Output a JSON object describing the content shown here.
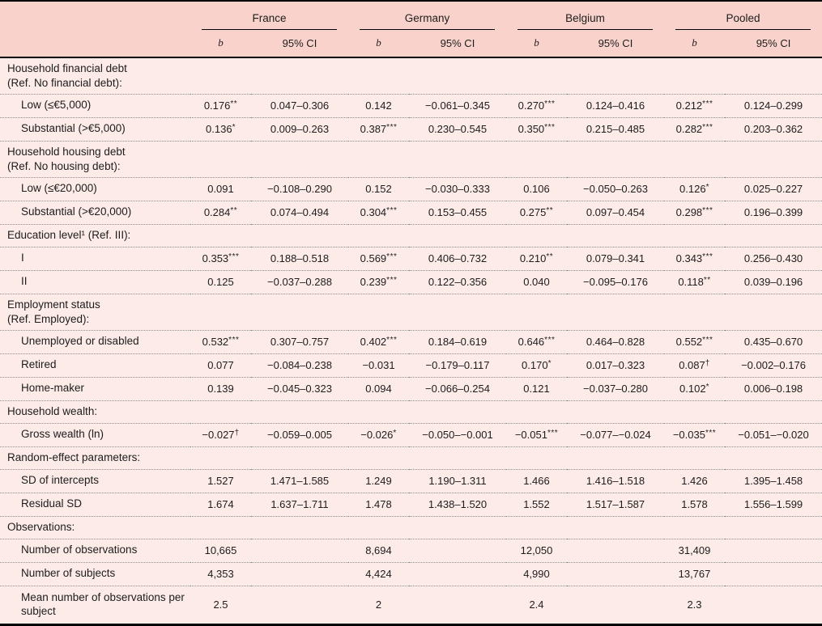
{
  "table": {
    "b_label": "b",
    "ci_label": "95% CI",
    "groups": [
      {
        "label": "France"
      },
      {
        "label": "Germany"
      },
      {
        "label": "Belgium"
      },
      {
        "label": "Pooled"
      }
    ],
    "rows": [
      {
        "type": "section",
        "label": "Household financial debt",
        "label2": "(Ref. No financial debt):"
      },
      {
        "type": "data",
        "label": "Low (≤€5,000)",
        "cells": [
          {
            "b": "0.176",
            "sig": "**",
            "ci": "0.047–0.306"
          },
          {
            "b": "0.142",
            "sig": "",
            "ci": "−0.061–0.345"
          },
          {
            "b": "0.270",
            "sig": "***",
            "ci": "0.124–0.416"
          },
          {
            "b": "0.212",
            "sig": "***",
            "ci": "0.124–0.299"
          }
        ]
      },
      {
        "type": "data",
        "label": "Substantial (>€5,000)",
        "cells": [
          {
            "b": "0.136",
            "sig": "*",
            "ci": "0.009–0.263"
          },
          {
            "b": "0.387",
            "sig": "***",
            "ci": "0.230–0.545"
          },
          {
            "b": "0.350",
            "sig": "***",
            "ci": "0.215–0.485"
          },
          {
            "b": "0.282",
            "sig": "***",
            "ci": "0.203–0.362"
          }
        ]
      },
      {
        "type": "section",
        "label": "Household housing debt",
        "label2": "(Ref. No housing debt):"
      },
      {
        "type": "data",
        "label": "Low (≤€20,000)",
        "cells": [
          {
            "b": "0.091",
            "sig": "",
            "ci": "−0.108–0.290"
          },
          {
            "b": "0.152",
            "sig": "",
            "ci": "−0.030–0.333"
          },
          {
            "b": "0.106",
            "sig": "",
            "ci": "−0.050–0.263"
          },
          {
            "b": "0.126",
            "sig": "*",
            "ci": "0.025–0.227"
          }
        ]
      },
      {
        "type": "data",
        "label": "Substantial (>€20,000)",
        "cells": [
          {
            "b": "0.284",
            "sig": "**",
            "ci": "0.074–0.494"
          },
          {
            "b": "0.304",
            "sig": "***",
            "ci": "0.153–0.455"
          },
          {
            "b": "0.275",
            "sig": "**",
            "ci": "0.097–0.454"
          },
          {
            "b": "0.298",
            "sig": "***",
            "ci": "0.196–0.399"
          }
        ]
      },
      {
        "type": "section",
        "label": "Education level¹ (Ref. III):",
        "label2": ""
      },
      {
        "type": "data",
        "label": "I",
        "cells": [
          {
            "b": "0.353",
            "sig": "***",
            "ci": "0.188–0.518"
          },
          {
            "b": "0.569",
            "sig": "***",
            "ci": "0.406–0.732"
          },
          {
            "b": "0.210",
            "sig": "**",
            "ci": "0.079–0.341"
          },
          {
            "b": "0.343",
            "sig": "***",
            "ci": "0.256–0.430"
          }
        ]
      },
      {
        "type": "data",
        "label": "II",
        "cells": [
          {
            "b": "0.125",
            "sig": "",
            "ci": "−0.037–0.288"
          },
          {
            "b": "0.239",
            "sig": "***",
            "ci": "0.122–0.356"
          },
          {
            "b": "0.040",
            "sig": "",
            "ci": "−0.095–0.176"
          },
          {
            "b": "0.118",
            "sig": "**",
            "ci": "0.039–0.196"
          }
        ]
      },
      {
        "type": "section",
        "label": "Employment status",
        "label2": "(Ref. Employed):"
      },
      {
        "type": "data",
        "label": "Unemployed or disabled",
        "cells": [
          {
            "b": "0.532",
            "sig": "***",
            "ci": "0.307–0.757"
          },
          {
            "b": "0.402",
            "sig": "***",
            "ci": "0.184–0.619"
          },
          {
            "b": "0.646",
            "sig": "***",
            "ci": "0.464–0.828"
          },
          {
            "b": "0.552",
            "sig": "***",
            "ci": "0.435–0.670"
          }
        ]
      },
      {
        "type": "data",
        "label": "Retired",
        "cells": [
          {
            "b": "0.077",
            "sig": "",
            "ci": "−0.084–0.238"
          },
          {
            "b": "−0.031",
            "sig": "",
            "ci": "−0.179–0.117"
          },
          {
            "b": "0.170",
            "sig": "*",
            "ci": "0.017–0.323"
          },
          {
            "b": "0.087",
            "sig": "†",
            "ci": "−0.002–0.176"
          }
        ]
      },
      {
        "type": "data",
        "label": "Home-maker",
        "cells": [
          {
            "b": "0.139",
            "sig": "",
            "ci": "−0.045–0.323"
          },
          {
            "b": "0.094",
            "sig": "",
            "ci": "−0.066–0.254"
          },
          {
            "b": "0.121",
            "sig": "",
            "ci": "−0.037–0.280"
          },
          {
            "b": "0.102",
            "sig": "*",
            "ci": "0.006–0.198"
          }
        ]
      },
      {
        "type": "section",
        "label": "Household wealth:",
        "label2": ""
      },
      {
        "type": "data",
        "label": "Gross wealth (ln)",
        "cells": [
          {
            "b": "−0.027",
            "sig": "†",
            "ci": "−0.059–0.005"
          },
          {
            "b": "−0.026",
            "sig": "*",
            "ci": "−0.050–−0.001"
          },
          {
            "b": "−0.051",
            "sig": "***",
            "ci": "−0.077–−0.024"
          },
          {
            "b": "−0.035",
            "sig": "***",
            "ci": "−0.051–−0.020"
          }
        ]
      },
      {
        "type": "section",
        "label": "Random-effect parameters:",
        "label2": ""
      },
      {
        "type": "data",
        "label": "SD of intercepts",
        "cells": [
          {
            "b": "1.527",
            "sig": "",
            "ci": "1.471–1.585"
          },
          {
            "b": "1.249",
            "sig": "",
            "ci": "1.190–1.311"
          },
          {
            "b": "1.466",
            "sig": "",
            "ci": "1.416–1.518"
          },
          {
            "b": "1.426",
            "sig": "",
            "ci": "1.395–1.458"
          }
        ]
      },
      {
        "type": "data",
        "label": "Residual SD",
        "cells": [
          {
            "b": "1.674",
            "sig": "",
            "ci": "1.637–1.711"
          },
          {
            "b": "1.478",
            "sig": "",
            "ci": "1.438–1.520"
          },
          {
            "b": "1.552",
            "sig": "",
            "ci": "1.517–1.587"
          },
          {
            "b": "1.578",
            "sig": "",
            "ci": "1.556–1.599"
          }
        ]
      },
      {
        "type": "section",
        "label": "Observations:",
        "label2": ""
      },
      {
        "type": "data",
        "label": "Number of observations",
        "cells": [
          {
            "b": "10,665",
            "sig": "",
            "ci": ""
          },
          {
            "b": "8,694",
            "sig": "",
            "ci": ""
          },
          {
            "b": "12,050",
            "sig": "",
            "ci": ""
          },
          {
            "b": "31,409",
            "sig": "",
            "ci": ""
          }
        ]
      },
      {
        "type": "data",
        "label": "Number of subjects",
        "cells": [
          {
            "b": "4,353",
            "sig": "",
            "ci": ""
          },
          {
            "b": "4,424",
            "sig": "",
            "ci": ""
          },
          {
            "b": "4,990",
            "sig": "",
            "ci": ""
          },
          {
            "b": "13,767",
            "sig": "",
            "ci": ""
          }
        ]
      },
      {
        "type": "data",
        "label": "Mean number of observations per subject",
        "cells": [
          {
            "b": "2.5",
            "sig": "",
            "ci": ""
          },
          {
            "b": "2",
            "sig": "",
            "ci": ""
          },
          {
            "b": "2.4",
            "sig": "",
            "ci": ""
          },
          {
            "b": "2.3",
            "sig": "",
            "ci": ""
          }
        ]
      }
    ],
    "colors": {
      "header_bg": "#f9d2cc",
      "body_bg": "#fcebe7",
      "rule": "#000000",
      "dotted_divider": "#8d8d8d"
    }
  }
}
